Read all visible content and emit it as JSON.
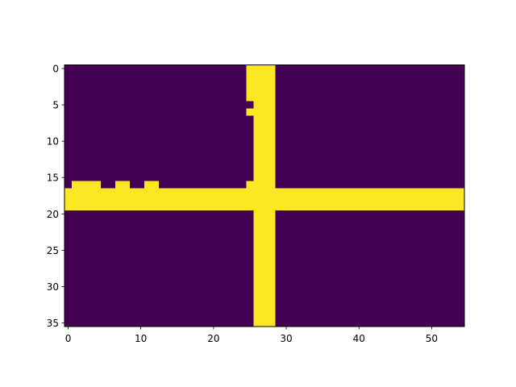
{
  "chart_data": {
    "type": "heatmap",
    "title": "",
    "xlabel": "",
    "ylabel": "",
    "n_cols": 55,
    "n_rows": 36,
    "xlim": [
      -0.5,
      54.5
    ],
    "ylim": [
      35.5,
      -0.5
    ],
    "y_axis_inverted": true,
    "grid": false,
    "colormap": "viridis",
    "value_colors": {
      "0": "#440154",
      "1": "#fde725"
    },
    "xticks": [
      0,
      10,
      20,
      30,
      40,
      50
    ],
    "xtick_labels": [
      "0",
      "10",
      "20",
      "30",
      "40",
      "50"
    ],
    "yticks": [
      0,
      5,
      10,
      15,
      20,
      25,
      30,
      35
    ],
    "ytick_labels": [
      "0",
      "5",
      "10",
      "15",
      "20",
      "25",
      "30",
      "35"
    ],
    "yellow_cells_by_row": [
      [
        [
          25,
          28
        ]
      ],
      [
        [
          25,
          28
        ]
      ],
      [
        [
          25,
          28
        ]
      ],
      [
        [
          25,
          28
        ]
      ],
      [
        [
          25,
          28
        ]
      ],
      [
        [
          26,
          28
        ]
      ],
      [
        [
          25,
          28
        ]
      ],
      [
        [
          26,
          28
        ]
      ],
      [
        [
          26,
          28
        ]
      ],
      [
        [
          26,
          28
        ]
      ],
      [
        [
          26,
          28
        ]
      ],
      [
        [
          26,
          28
        ]
      ],
      [
        [
          26,
          28
        ]
      ],
      [
        [
          26,
          28
        ]
      ],
      [
        [
          26,
          28
        ]
      ],
      [
        [
          26,
          28
        ]
      ],
      [
        [
          1,
          4
        ],
        [
          7,
          8
        ],
        [
          11,
          12
        ],
        [
          25,
          28
        ]
      ],
      [
        [
          0,
          54
        ]
      ],
      [
        [
          0,
          54
        ]
      ],
      [
        [
          0,
          54
        ]
      ],
      [
        [
          26,
          28
        ]
      ],
      [
        [
          26,
          28
        ]
      ],
      [
        [
          26,
          28
        ]
      ],
      [
        [
          26,
          28
        ]
      ],
      [
        [
          26,
          28
        ]
      ],
      [
        [
          26,
          28
        ]
      ],
      [
        [
          26,
          28
        ]
      ],
      [
        [
          26,
          28
        ]
      ],
      [
        [
          26,
          28
        ]
      ],
      [
        [
          26,
          28
        ]
      ],
      [
        [
          26,
          28
        ]
      ],
      [
        [
          26,
          28
        ]
      ],
      [
        [
          26,
          28
        ]
      ],
      [
        [
          26,
          28
        ]
      ],
      [
        [
          26,
          28
        ]
      ],
      [
        [
          26,
          28
        ]
      ]
    ]
  }
}
